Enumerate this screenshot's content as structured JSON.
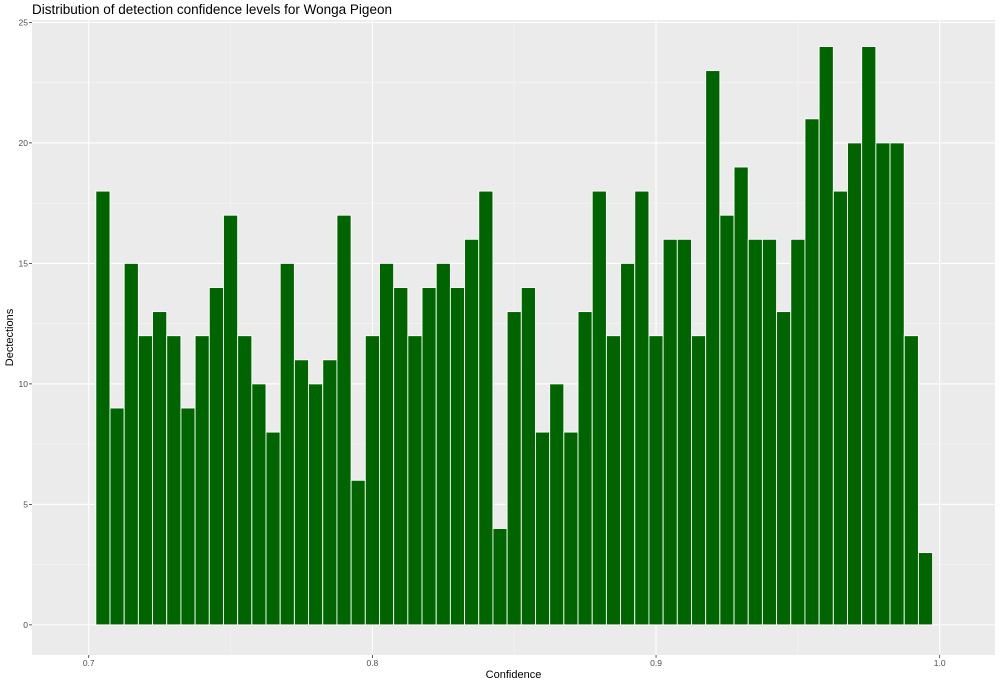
{
  "chart_data": {
    "type": "bar",
    "title": "Distribution of detection confidence levels for Wonga Pigeon",
    "xlabel": "Confidence",
    "ylabel": "Dectections",
    "xlim": [
      0.68,
      1.0195
    ],
    "ylim": [
      -1.25,
      25.1
    ],
    "x_ticks": [
      0.7,
      0.8,
      0.9,
      1.0
    ],
    "x_tick_labels": [
      "0.7",
      "0.8",
      "0.9",
      "1.0"
    ],
    "y_ticks": [
      0,
      5,
      10,
      15,
      20,
      25
    ],
    "y_tick_labels": [
      "0",
      "5",
      "10",
      "15",
      "20",
      "25"
    ],
    "grid": true,
    "bin_width": 0.005,
    "bins_start": 0.7025,
    "values": [
      18,
      9,
      15,
      12,
      13,
      12,
      9,
      12,
      14,
      17,
      12,
      10,
      8,
      15,
      11,
      10,
      11,
      17,
      6,
      12,
      15,
      14,
      12,
      14,
      15,
      14,
      16,
      18,
      4,
      13,
      14,
      8,
      10,
      8,
      13,
      18,
      12,
      15,
      18,
      12,
      16,
      16,
      12,
      23,
      17,
      19,
      16,
      16,
      13,
      16,
      21,
      24,
      18,
      20,
      24,
      20,
      20,
      12,
      3
    ],
    "colors": {
      "bar_fill": "#006400",
      "bar_outline": "#ffffff",
      "panel_background": "#ebebeb",
      "grid_major": "#ffffff",
      "grid_minor": "#f5f5f5",
      "tick_text": "#4d4d4d",
      "tick_mark": "#333333"
    }
  }
}
